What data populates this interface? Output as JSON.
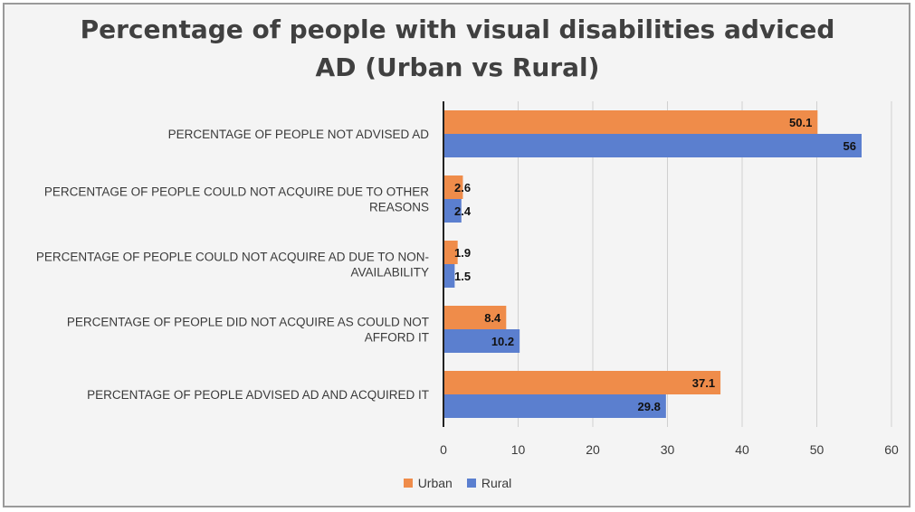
{
  "chart_data": {
    "type": "bar",
    "orientation": "horizontal",
    "title": "Percentage of people with visual disabilities adviced AD (Urban vs Rural)",
    "title_lines": [
      "Percentage of people with visual disabilities adviced",
      "AD (Urban vs Rural)"
    ],
    "categories": [
      [
        "PERCENTAGE OF PEOPLE NOT ADVISED AD"
      ],
      [
        "PERCENTAGE OF PEOPLE COULD NOT ACQUIRE DUE TO OTHER",
        "REASONS"
      ],
      [
        "PERCENTAGE OF PEOPLE COULD NOT ACQUIRE AD DUE TO NON-",
        "AVAILABILITY"
      ],
      [
        "PERCENTAGE OF PEOPLE DID NOT ACQUIRE AS COULD NOT",
        "AFFORD IT"
      ],
      [
        "PERCENTAGE OF PEOPLE ADVISED AD AND ACQUIRED IT"
      ]
    ],
    "series": [
      {
        "name": "Urban",
        "color": "#ef8c4a",
        "values": [
          50.1,
          2.6,
          1.9,
          8.4,
          37.1
        ],
        "labels": [
          "50.1",
          "2.6",
          "1.9",
          "8.4",
          "37.1"
        ]
      },
      {
        "name": "Rural",
        "color": "#5b7fcf",
        "values": [
          56,
          2.4,
          1.5,
          10.2,
          29.8
        ],
        "labels": [
          "56",
          "2.4",
          "1.5",
          "10.2",
          "29.8"
        ]
      }
    ],
    "xlim": [
      0,
      60
    ],
    "xticks": [
      0,
      10,
      20,
      30,
      40,
      50,
      60
    ],
    "grid": true,
    "legend_position": "bottom"
  }
}
